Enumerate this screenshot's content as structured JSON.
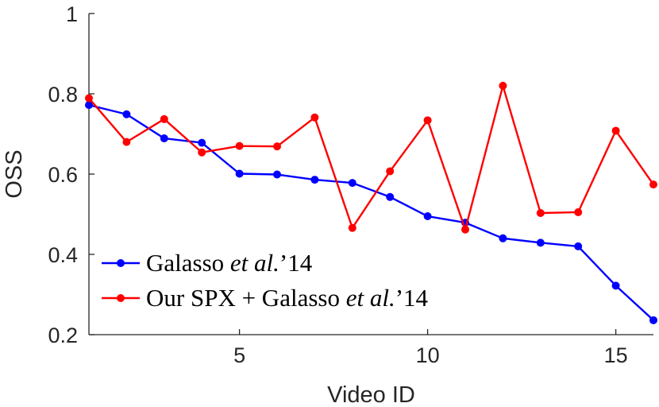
{
  "chart_data": {
    "type": "line",
    "title": "",
    "xlabel": "Video ID",
    "ylabel": "OSS",
    "xlim": [
      1,
      16
    ],
    "ylim": [
      0.2,
      1.0
    ],
    "xticks": [
      5,
      10,
      15
    ],
    "xtick_labels": [
      "5",
      "10",
      "15"
    ],
    "yticks": [
      0.2,
      0.4,
      0.6,
      0.8,
      1.0
    ],
    "ytick_labels": [
      "0.2",
      "0.4",
      "0.6",
      "0.8",
      "1"
    ],
    "grid": false,
    "legend_position": "bottom-left",
    "x": [
      1,
      2,
      3,
      4,
      5,
      6,
      7,
      8,
      9,
      10,
      11,
      12,
      13,
      14,
      15,
      16
    ],
    "series": [
      {
        "name": "Galasso et al.’14",
        "legend": {
          "plain": "Galasso ",
          "italic": "et al.",
          "suffix": "’14"
        },
        "color": "#0000ff",
        "values": [
          0.772,
          0.749,
          0.689,
          0.678,
          0.601,
          0.599,
          0.586,
          0.578,
          0.543,
          0.495,
          0.479,
          0.44,
          0.429,
          0.42,
          0.322,
          0.236
        ]
      },
      {
        "name": "Our SPX + Galasso et al.’14",
        "legend": {
          "plain": "Our SPX + Galasso ",
          "italic": "et al.",
          "suffix": "’14"
        },
        "color": "#ff0000",
        "values": [
          0.789,
          0.68,
          0.737,
          0.654,
          0.67,
          0.669,
          0.741,
          0.466,
          0.607,
          0.734,
          0.462,
          0.82,
          0.503,
          0.505,
          0.708,
          0.574
        ]
      }
    ]
  }
}
